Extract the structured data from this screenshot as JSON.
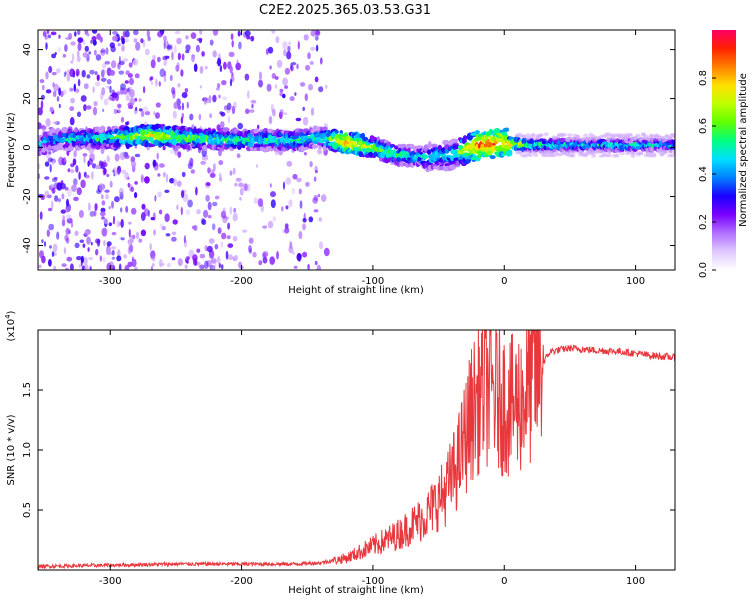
{
  "title": "C2E2.2025.365.03.53.G31",
  "chart_data": [
    {
      "type": "heatmap",
      "title": "C2E2.2025.365.03.53.G31",
      "xlabel": "Height of straight line (km)",
      "ylabel": "Frequency (Hz)",
      "xlim": [
        -355,
        130
      ],
      "ylim": [
        -50,
        48
      ],
      "xticks": [
        "-300",
        "-200",
        "-100",
        "0",
        "100"
      ],
      "yticks": [
        "40",
        "20",
        "0",
        "-20",
        "-40"
      ],
      "colorbar": {
        "label": "Normalized spectral amplitude",
        "range": [
          0,
          1
        ],
        "ticks": [
          "0.0",
          "0.2",
          "0.4",
          "0.6",
          "0.8"
        ],
        "colors": [
          "#ffffff",
          "#e0c8ff",
          "#b070ff",
          "#7a00ff",
          "#1a00ff",
          "#0080ff",
          "#00e0ff",
          "#00ff80",
          "#60ff00",
          "#c0ff00",
          "#ffe000",
          "#ff8000",
          "#ff2000",
          "#ff0066"
        ]
      },
      "ridge": [
        {
          "x": -350,
          "y": 3,
          "amp": 0.45
        },
        {
          "x": -300,
          "y": 4,
          "amp": 0.55
        },
        {
          "x": -270,
          "y": 5,
          "amp": 0.75
        },
        {
          "x": -240,
          "y": 4,
          "amp": 0.6
        },
        {
          "x": -200,
          "y": 3,
          "amp": 0.55
        },
        {
          "x": -160,
          "y": 3,
          "amp": 0.55
        },
        {
          "x": -140,
          "y": 4,
          "amp": 0.5
        },
        {
          "x": -120,
          "y": 2,
          "amp": 0.85
        },
        {
          "x": -100,
          "y": 0,
          "amp": 0.65
        },
        {
          "x": -80,
          "y": -3,
          "amp": 0.55
        },
        {
          "x": -60,
          "y": -4,
          "amp": 0.5
        },
        {
          "x": -40,
          "y": -3,
          "amp": 0.5
        },
        {
          "x": -20,
          "y": 1,
          "amp": 0.9
        },
        {
          "x": 0,
          "y": 2,
          "amp": 0.85
        },
        {
          "x": 20,
          "y": 1,
          "amp": 0.6
        },
        {
          "x": 60,
          "y": 1,
          "amp": 0.5
        },
        {
          "x": 100,
          "y": 1,
          "amp": 0.55
        },
        {
          "x": 130,
          "y": 1,
          "amp": 0.5
        }
      ]
    },
    {
      "type": "line",
      "xlabel": "Height of straight line (km)",
      "ylabel": "SNR (10 * v/v)",
      "yscale_label": "(x10",
      "yscale_exp": "4",
      "yscale_close": ")",
      "xlim": [
        -355,
        130
      ],
      "ylim": [
        0,
        2.0
      ],
      "xticks": [
        "-300",
        "-200",
        "-100",
        "0",
        "100"
      ],
      "yticks": [
        "1.5",
        "1.0",
        "0.5"
      ],
      "series": [
        {
          "name": "SNR",
          "color": "#e8383d",
          "points": [
            {
              "x": -355,
              "y": 0.03
            },
            {
              "x": -300,
              "y": 0.04
            },
            {
              "x": -250,
              "y": 0.05
            },
            {
              "x": -200,
              "y": 0.05
            },
            {
              "x": -160,
              "y": 0.05
            },
            {
              "x": -140,
              "y": 0.06
            },
            {
              "x": -120,
              "y": 0.1
            },
            {
              "x": -100,
              "y": 0.2
            },
            {
              "x": -80,
              "y": 0.3
            },
            {
              "x": -60,
              "y": 0.45
            },
            {
              "x": -45,
              "y": 0.65
            },
            {
              "x": -35,
              "y": 0.9
            },
            {
              "x": -25,
              "y": 1.3
            },
            {
              "x": -15,
              "y": 1.55
            },
            {
              "x": -5,
              "y": 1.45
            },
            {
              "x": 5,
              "y": 1.35
            },
            {
              "x": 15,
              "y": 1.45
            },
            {
              "x": 25,
              "y": 1.65
            },
            {
              "x": 35,
              "y": 1.82
            },
            {
              "x": 50,
              "y": 1.85
            },
            {
              "x": 70,
              "y": 1.83
            },
            {
              "x": 90,
              "y": 1.82
            },
            {
              "x": 110,
              "y": 1.79
            },
            {
              "x": 130,
              "y": 1.77
            }
          ]
        }
      ]
    }
  ]
}
